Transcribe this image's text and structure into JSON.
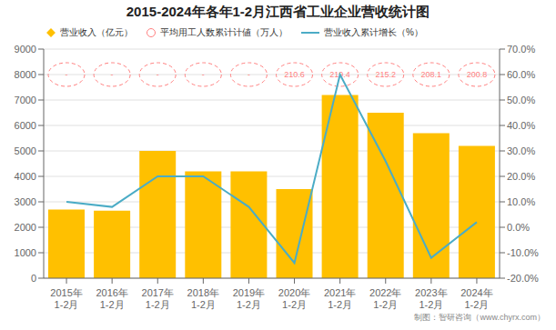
{
  "chart_data": {
    "type": "bar",
    "title": "2015-2024年各年1-2月江西省工业企业营收统计图",
    "categories": [
      "2015年\n1-2月",
      "2016年\n1-2月",
      "2017年\n1-2月",
      "2018年\n1-2月",
      "2019年\n1-2月",
      "2020年\n1-2月",
      "2021年\n1-2月",
      "2022年\n1-2月",
      "2023年\n1-2月",
      "2024年\n1-2月"
    ],
    "series": [
      {
        "name": "营业收入（亿元）",
        "type": "bar",
        "marker": "diamond",
        "color": "#FFC000",
        "values": [
          2700,
          2650,
          5000,
          4200,
          4200,
          3500,
          7200,
          6500,
          5700,
          5200
        ]
      },
      {
        "name": "平均用工人数累计计値（万人）",
        "type": "label",
        "marker": "circle",
        "line_style": "dashed",
        "color": "#FF8080",
        "values": [
          null,
          null,
          null,
          null,
          null,
          210.6,
          219.4,
          215.2,
          208.1,
          200.8
        ],
        "value_labels": [
          "-",
          "-",
          "-",
          "-",
          "-",
          "210.6",
          "219.4",
          "215.2",
          "208.1",
          "200.8"
        ]
      },
      {
        "name": "营业收入累计增长（%）",
        "type": "line",
        "axis": "y2",
        "color": "#4BACC6",
        "values": [
          10.0,
          8.0,
          20.0,
          20.0,
          8.0,
          -14.0,
          60.0,
          26.0,
          -12.0,
          2.0
        ]
      }
    ],
    "ylim": [
      0,
      9000
    ],
    "yticks": [
      0,
      1000,
      2000,
      3000,
      4000,
      5000,
      6000,
      7000,
      8000,
      9000
    ],
    "y2lim": [
      -20.0,
      70.0
    ],
    "y2ticks": [
      {
        "value": -20,
        "label": "-20.0%"
      },
      {
        "value": -10,
        "label": "-10.0%"
      },
      {
        "value": 0,
        "label": "0.0%"
      },
      {
        "value": 10,
        "label": "10.0%"
      },
      {
        "value": 20,
        "label": "20.0%"
      },
      {
        "value": 30,
        "label": "30.0%"
      },
      {
        "value": 40,
        "label": "40.0%"
      },
      {
        "value": 50,
        "label": "50.0%"
      },
      {
        "value": 60,
        "label": "60.0%"
      },
      {
        "value": 70,
        "label": "70.0%"
      }
    ],
    "grid": true,
    "legend": "upper left",
    "annotations": [
      "制图：智研咨询（www.chyrx.com）"
    ]
  }
}
